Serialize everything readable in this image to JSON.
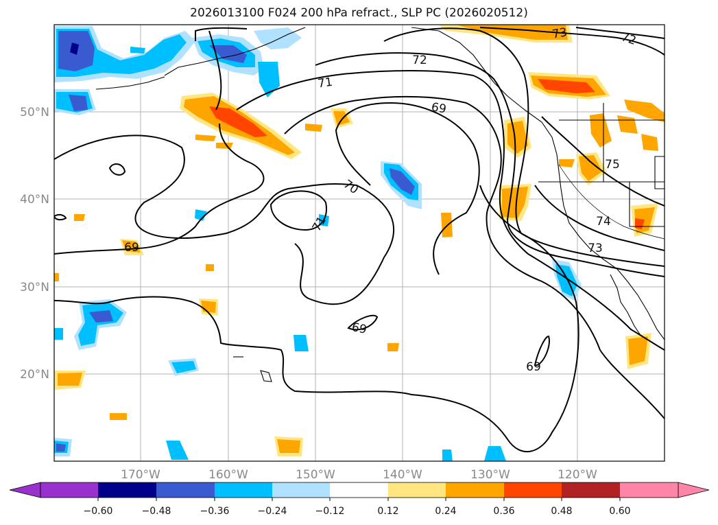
{
  "title": "2026013100 F024 200 hPa refract., SLP PC (2026020512)",
  "axes": {
    "lat_labels": [
      "50°N",
      "40°N",
      "30°N",
      "20°N"
    ],
    "lon_labels": [
      "170°W",
      "160°W",
      "150°W",
      "140°W",
      "130°W",
      "120°W"
    ]
  },
  "colorbar": {
    "ticks": [
      "−0.60",
      "−0.48",
      "−0.36",
      "−0.24",
      "−0.12",
      "0.12",
      "0.24",
      "0.36",
      "0.48",
      "0.60"
    ],
    "colors": [
      "#9932cc",
      "#00008b",
      "#3a5bd0",
      "#00bfff",
      "#b0e2ff",
      "#ffffff",
      "#ffe680",
      "#ffa500",
      "#ff4500",
      "#b22222",
      "#ff85a8"
    ]
  },
  "contour_labels": [
    "73",
    "72",
    "72",
    "71",
    "69",
    "70",
    "71",
    "69",
    "69",
    "69",
    "75",
    "74",
    "73"
  ]
}
